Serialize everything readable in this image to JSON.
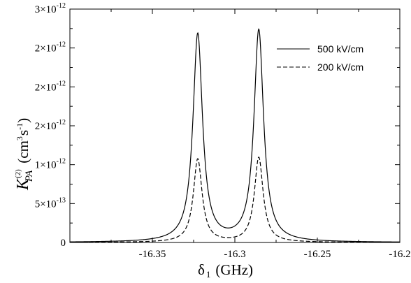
{
  "chart_data": {
    "type": "line",
    "title": "",
    "xlabel": {
      "symbol": "δ",
      "subscript": "1",
      "unit": "(GHz)"
    },
    "ylabel": {
      "symbol": "K",
      "superscript": "(2)",
      "subscript": "PA",
      "unit_open": "(cm",
      "unit_exp1": "3",
      "unit_mid": "s",
      "unit_exp2": "-1",
      "unit_close": ")"
    },
    "xlim": [
      -16.4,
      -16.2
    ],
    "ylim": [
      0,
      3e-12
    ],
    "x_ticks": [
      {
        "value": -16.35,
        "label": "-16.35"
      },
      {
        "value": -16.3,
        "label": "-16.3"
      },
      {
        "value": -16.25,
        "label": "-16.25"
      },
      {
        "value": -16.2,
        "label": "-16.2"
      }
    ],
    "y_ticks": [
      {
        "value": 0,
        "label": "0"
      },
      {
        "value": 5e-13,
        "mantissa": "5×10",
        "exponent": "-13"
      },
      {
        "value": 1e-12,
        "mantissa": "1×10",
        "exponent": "-12"
      },
      {
        "value": 1.5e-12,
        "mantissa": "2×10",
        "exponent": "-12"
      },
      {
        "value": 2e-12,
        "mantissa": "2×10",
        "exponent": "-12"
      },
      {
        "value": 2.5e-12,
        "mantissa": "2×10",
        "exponent": "-12"
      },
      {
        "value": 3e-12,
        "mantissa": "3×10",
        "exponent": "-12"
      }
    ],
    "grid": false,
    "legend_position": "top-right",
    "series": [
      {
        "name": "500 kV/cm",
        "style": "solid",
        "color": "#000000",
        "peaks": [
          {
            "center": -16.3225,
            "amplitude": 2.67e-12,
            "hwhm": 0.0035
          },
          {
            "center": -16.2855,
            "amplitude": 2.72e-12,
            "hwhm": 0.0035
          }
        ]
      },
      {
        "name": "200 kV/cm",
        "style": "dashed",
        "color": "#000000",
        "peaks": [
          {
            "center": -16.3225,
            "amplitude": 1.07e-12,
            "hwhm": 0.0032
          },
          {
            "center": -16.2855,
            "amplitude": 1.09e-12,
            "hwhm": 0.0032
          }
        ]
      }
    ]
  }
}
